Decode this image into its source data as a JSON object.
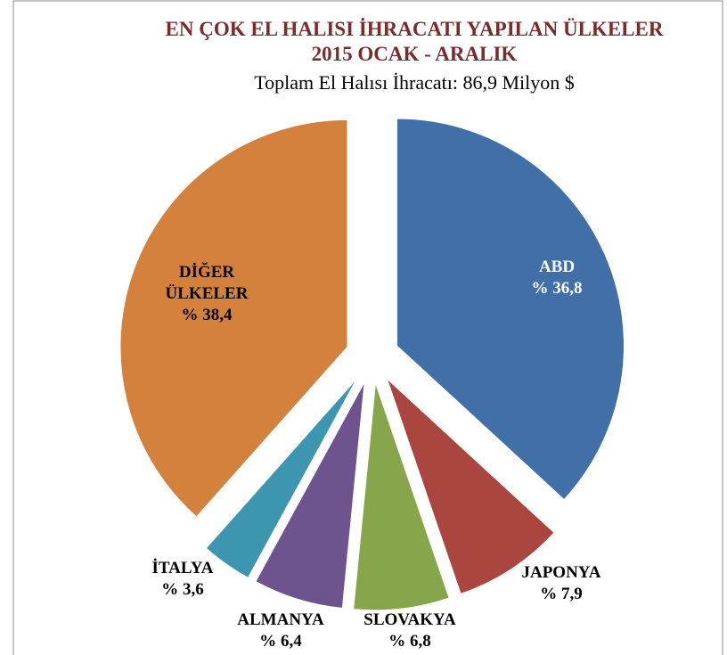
{
  "chart_data": {
    "type": "pie",
    "title": "EN ÇOK EL HALISI İHRACATI YAPILAN ÜLKELER",
    "subtitle": "2015  OCAK - ARALIK",
    "annotation": "Toplam El Halısı İhracatı: 86,9 Milyon $",
    "categories": [
      "ABD",
      "JAPONYA",
      "SLOVAKYA",
      "ALMANYA",
      "İTALYA",
      "DİĞER ÜLKELER"
    ],
    "values": [
      36.8,
      7.9,
      6.8,
      6.4,
      3.6,
      38.4
    ],
    "value_labels": [
      "% 36,8",
      "% 7,9",
      "% 6,8",
      "% 6,4",
      "% 3,6",
      "% 38,4"
    ],
    "colors": [
      "#4170a8",
      "#aa4540",
      "#87a64b",
      "#6d548f",
      "#3d96b0",
      "#d5813e"
    ]
  }
}
